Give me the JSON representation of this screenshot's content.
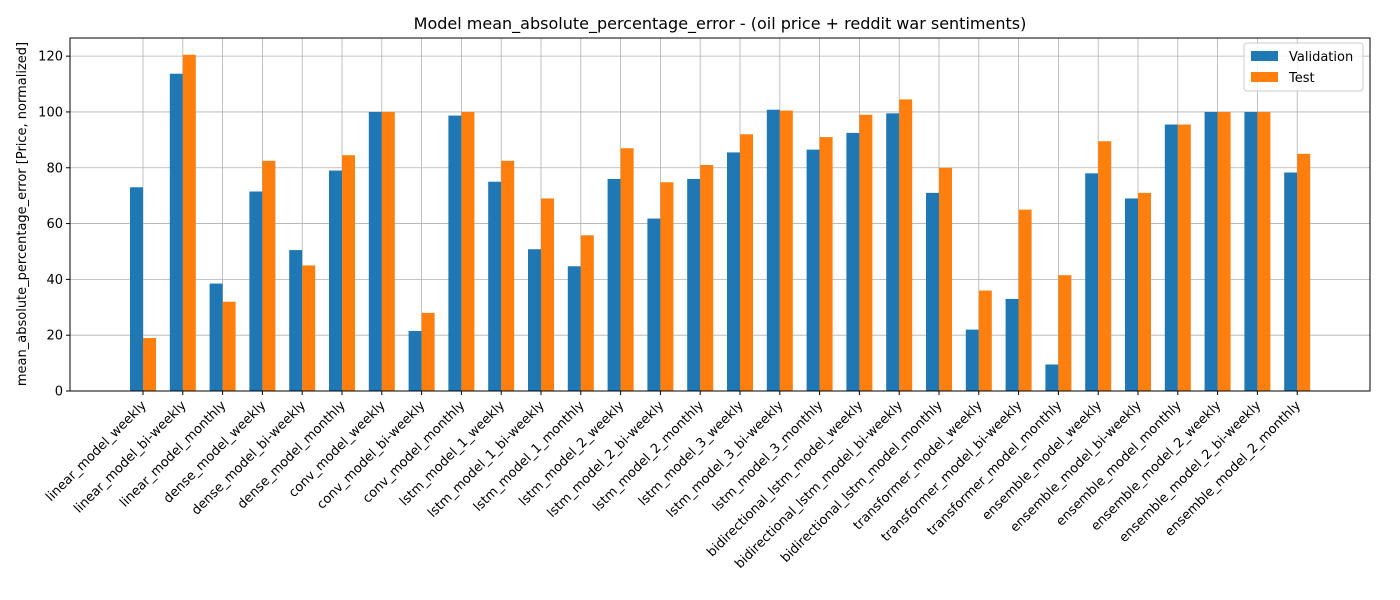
{
  "chart_data": {
    "type": "bar",
    "title": "Model mean_absolute_percentage_error - (oil price + reddit war sentiments)",
    "xlabel": "",
    "ylabel": "mean_absolute_percentage_error [Price, normalized]",
    "ylim": [
      0,
      126.5
    ],
    "yticks": [
      0,
      20,
      40,
      60,
      80,
      100,
      120
    ],
    "grid": true,
    "legend_position": "top-right",
    "categories": [
      "linear_model_weekly",
      "linear_model_bi-weekly",
      "linear_model_monthly",
      "dense_model_weekly",
      "dense_model_bi-weekly",
      "dense_model_monthly",
      "conv_model_weekly",
      "conv_model_bi-weekly",
      "conv_model_monthly",
      "lstm_model_1_weekly",
      "lstm_model_1_bi-weekly",
      "lstm_model_1_monthly",
      "lstm_model_2_weekly",
      "lstm_model_2_bi-weekly",
      "lstm_model_2_monthly",
      "lstm_model_3_weekly",
      "lstm_model_3_bi-weekly",
      "lstm_model_3_monthly",
      "bidirectional_lstm_model_weekly",
      "bidirectional_lstm_model_bi-weekly",
      "bidirectional_lstm_model_monthly",
      "transformer_model_weekly",
      "transformer_model_bi-weekly",
      "transformer_model_monthly",
      "ensemble_model_weekly",
      "ensemble_model_bi-weekly",
      "ensemble_model_monthly",
      "ensemble_model_2_weekly",
      "ensemble_model_2_bi-weekly",
      "ensemble_model_2_monthly"
    ],
    "series": [
      {
        "name": "Validation",
        "color": "#1f77b4",
        "values": [
          73,
          113.7,
          38.5,
          71.5,
          50.5,
          79,
          100,
          21.5,
          98.7,
          75,
          50.8,
          44.7,
          76,
          61.8,
          76,
          85.5,
          100.8,
          86.5,
          92.5,
          99.5,
          71,
          22,
          33,
          9.5,
          78,
          69,
          95.5,
          100,
          100,
          78.3
        ]
      },
      {
        "name": "Test",
        "color": "#ff7f0e",
        "values": [
          19,
          120.5,
          32,
          82.5,
          45,
          84.5,
          100,
          28,
          100,
          82.5,
          69,
          55.8,
          87,
          74.8,
          81,
          92,
          100.5,
          91,
          99,
          104.5,
          80,
          36,
          65,
          41.5,
          89.5,
          71,
          95.5,
          100,
          100,
          85
        ]
      }
    ]
  }
}
